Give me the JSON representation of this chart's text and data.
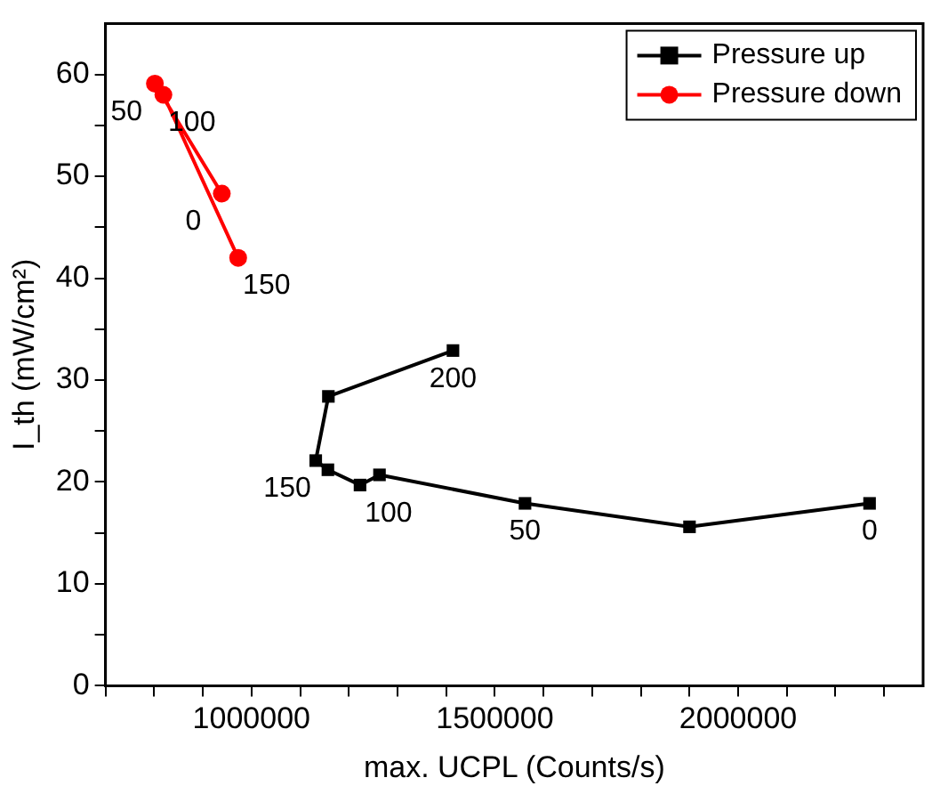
{
  "chart_data": {
    "type": "line",
    "xlabel": "max. UCPL (Counts/s)",
    "ylabel": "I_th (mW/cm²)",
    "xlim": [
      700000,
      2380000
    ],
    "ylim": [
      0,
      65
    ],
    "xticks": [
      {
        "value": 700000,
        "label": null
      },
      {
        "value": 800000,
        "label": null
      },
      {
        "value": 900000,
        "label": null
      },
      1000000,
      {
        "value": 1100000,
        "label": null
      },
      {
        "value": 1200000,
        "label": null
      },
      {
        "value": 1300000,
        "label": null
      },
      {
        "value": 1400000,
        "label": null
      },
      1500000,
      {
        "value": 1600000,
        "label": null
      },
      {
        "value": 1700000,
        "label": null
      },
      {
        "value": 1800000,
        "label": null
      },
      {
        "value": 1900000,
        "label": null
      },
      2000000,
      {
        "value": 2100000,
        "label": null
      },
      {
        "value": 2200000,
        "label": null
      },
      {
        "value": 2300000,
        "label": null
      }
    ],
    "yticks": [
      0,
      {
        "value": 5,
        "label": null
      },
      10,
      {
        "value": 15,
        "label": null
      },
      20,
      {
        "value": 25,
        "label": null
      },
      30,
      {
        "value": 35,
        "label": null
      },
      40,
      {
        "value": 45,
        "label": null
      },
      50,
      {
        "value": 55,
        "label": null
      },
      60
    ],
    "grid": false,
    "legend": "top right",
    "line_style": "solid",
    "series": [
      {
        "name": "Pressure up",
        "color": "#000000",
        "marker": "square",
        "x": [
          2270000,
          1900000,
          1562000,
          1263000,
          1223000,
          1157000,
          1132000,
          1158000,
          1414000
        ],
        "values": [
          17.9,
          15.6,
          17.9,
          20.7,
          19.7,
          21.2,
          22.1,
          28.4,
          32.9
        ]
      },
      {
        "name": "Pressure down",
        "color": "#ff0000",
        "marker": "circle",
        "x": [
          972600,
          819000,
          801500,
          939000
        ],
        "values": [
          42,
          58,
          59.1,
          48.3
        ]
      }
    ],
    "annotations": [
      {
        "text": "0",
        "x": 2270000,
        "y": 17.9
      },
      {
        "text": "50",
        "x": 1562000,
        "y": 17.9
      },
      {
        "text": "100",
        "x": 1223000,
        "y": 19.7
      },
      {
        "text": "150",
        "x": 1132000,
        "y": 22.1
      },
      {
        "text": "200",
        "x": 1414000,
        "y": 32.9
      },
      {
        "text": "150",
        "x": 972600,
        "y": 42
      },
      {
        "text": "100",
        "x": 819000,
        "y": 58
      },
      {
        "text": "50",
        "x": 801500,
        "y": 59.1
      },
      {
        "text": "0",
        "x": 939000,
        "y": 48.3
      }
    ]
  }
}
